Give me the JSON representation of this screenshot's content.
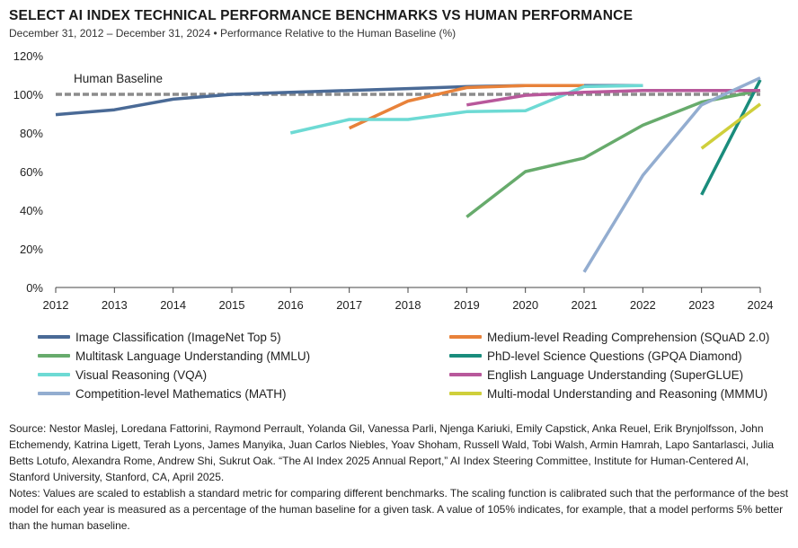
{
  "header": {
    "title": "SELECT AI INDEX TECHNICAL PERFORMANCE BENCHMARKS VS HUMAN PERFORMANCE",
    "subtitle": "December 31, 2012 – December 31, 2024 • Performance Relative to the Human Baseline (%)"
  },
  "chart_data": {
    "type": "line",
    "xlim": [
      2012,
      2024
    ],
    "ylim": [
      0,
      120
    ],
    "x_ticks": [
      2012,
      2013,
      2014,
      2015,
      2016,
      2017,
      2018,
      2019,
      2020,
      2021,
      2022,
      2023,
      2024
    ],
    "y_ticks": [
      0,
      20,
      40,
      60,
      80,
      100,
      120
    ],
    "y_tick_labels": [
      "0%",
      "20%",
      "40%",
      "60%",
      "80%",
      "100%",
      "120%"
    ],
    "grid": false,
    "legend_position": "bottom",
    "baseline": {
      "label": "Human Baseline",
      "value": 100,
      "color": "#8c8c8c"
    },
    "series": [
      {
        "name": "Image Classification (ImageNet Top 5)",
        "color": "#4a6a96",
        "x": [
          2012,
          2013,
          2014,
          2015,
          2016,
          2017,
          2018,
          2019,
          2020,
          2021,
          2022
        ],
        "y": [
          89.5,
          92,
          97.5,
          100,
          101,
          102,
          103,
          104,
          104.5,
          104.5,
          104.5
        ]
      },
      {
        "name": "Medium-level Reading Comprehension (SQuAD 2.0)",
        "color": "#e8823a",
        "x": [
          2017,
          2018,
          2019,
          2020,
          2021
        ],
        "y": [
          82.5,
          96.5,
          103.5,
          104.5,
          104.5
        ]
      },
      {
        "name": "Multitask Language Understanding (MMLU)",
        "color": "#67ab6c",
        "x": [
          2019,
          2020,
          2021,
          2022,
          2023,
          2024
        ],
        "y": [
          36.5,
          60,
          67,
          84,
          96,
          102
        ]
      },
      {
        "name": "PhD-level Science Questions (GPQA Diamond)",
        "color": "#1a8c7c",
        "x": [
          2023,
          2024
        ],
        "y": [
          48,
          107.5
        ]
      },
      {
        "name": "Visual Reasoning (VQA)",
        "color": "#6ddad4",
        "x": [
          2016,
          2017,
          2018,
          2019,
          2020,
          2021,
          2022
        ],
        "y": [
          80,
          87,
          87,
          91,
          91.5,
          104,
          104.5
        ]
      },
      {
        "name": "English Language Understanding (SuperGLUE)",
        "color": "#b8589b",
        "x": [
          2019,
          2020,
          2021,
          2022,
          2023,
          2024
        ],
        "y": [
          94.5,
          99.5,
          101,
          102,
          102,
          102
        ]
      },
      {
        "name": "Competition-level Mathematics (MATH)",
        "color": "#93add0",
        "x": [
          2021,
          2022,
          2023,
          2024
        ],
        "y": [
          8,
          58,
          94.5,
          108.5
        ]
      },
      {
        "name": "Multi-modal Understanding and Reasoning (MMMU)",
        "color": "#cfcf3b",
        "x": [
          2023,
          2024
        ],
        "y": [
          72,
          95
        ]
      }
    ]
  },
  "notes": {
    "source": "Source: Nestor Maslej, Loredana Fattorini, Raymond Perrault, Yolanda Gil, Vanessa Parli, Njenga Kariuki, Emily Capstick, Anka Reuel, Erik Brynjolfsson, John Etchemendy, Katrina Ligett, Terah Lyons, James Manyika, Juan Carlos Niebles, Yoav Shoham, Russell Wald, Tobi Walsh, Armin Hamrah, Lapo Santarlasci, Julia Betts Lotufo, Alexandra Rome, Andrew Shi, Sukrut Oak. “The AI Index 2025 Annual Report,” AI Index Steering Committee, Institute for Human-Centered AI, Stanford University, Stanford, CA, April 2025.",
    "notes": "Notes: Values are scaled to establish a standard metric for comparing different benchmarks. The scaling function is calibrated such that the performance of the best model for each year is measured as a percentage of the human baseline for a given task. A value of 105% indicates, for example, that a model performs 5% better than the human baseline."
  }
}
